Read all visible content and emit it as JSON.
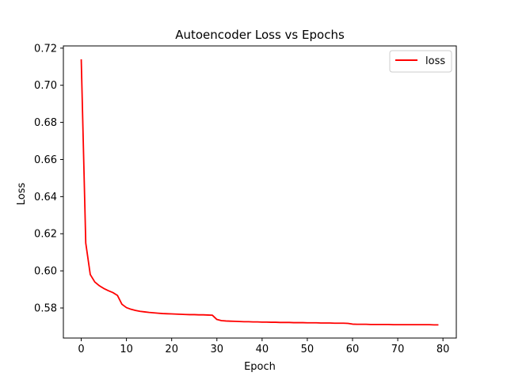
{
  "chart_data": {
    "type": "line",
    "title": "Autoencoder Loss vs Epochs",
    "xlabel": "Epoch",
    "ylabel": "Loss",
    "xlim": [
      -3.95,
      82.95
    ],
    "ylim": [
      0.5638,
      0.7212
    ],
    "xticks": [
      0,
      10,
      20,
      30,
      40,
      50,
      60,
      70,
      80
    ],
    "yticks": [
      0.58,
      0.6,
      0.62,
      0.64,
      0.66,
      0.68,
      0.7,
      0.72
    ],
    "ytick_labels": [
      "0.58",
      "0.60",
      "0.62",
      "0.64",
      "0.66",
      "0.68",
      "0.70",
      "0.72"
    ],
    "grid": false,
    "legend_position": "top-right",
    "series": [
      {
        "name": "loss",
        "color": "#ff0000",
        "x": [
          0,
          1,
          2,
          3,
          4,
          5,
          6,
          7,
          8,
          9,
          10,
          11,
          12,
          13,
          14,
          15,
          16,
          17,
          18,
          19,
          20,
          21,
          22,
          23,
          24,
          25,
          26,
          27,
          28,
          29,
          30,
          31,
          32,
          33,
          34,
          35,
          36,
          37,
          38,
          39,
          40,
          41,
          42,
          43,
          44,
          45,
          46,
          47,
          48,
          49,
          50,
          51,
          52,
          53,
          54,
          55,
          56,
          57,
          58,
          59,
          60,
          61,
          62,
          63,
          64,
          65,
          66,
          67,
          68,
          69,
          70,
          71,
          72,
          73,
          74,
          75,
          76,
          77,
          78,
          79
        ],
        "values": [
          0.714,
          0.615,
          0.598,
          0.594,
          0.592,
          0.5905,
          0.5893,
          0.5883,
          0.5868,
          0.582,
          0.5802,
          0.5793,
          0.5787,
          0.5782,
          0.5779,
          0.5776,
          0.5774,
          0.5772,
          0.577,
          0.5769,
          0.5768,
          0.5767,
          0.5766,
          0.5765,
          0.5764,
          0.5764,
          0.5763,
          0.5763,
          0.5762,
          0.5761,
          0.5738,
          0.5732,
          0.573,
          0.5729,
          0.5728,
          0.5727,
          0.5726,
          0.5726,
          0.5725,
          0.5725,
          0.5724,
          0.5724,
          0.5723,
          0.5723,
          0.5722,
          0.5722,
          0.5722,
          0.5721,
          0.5721,
          0.5721,
          0.572,
          0.572,
          0.572,
          0.5719,
          0.5719,
          0.5719,
          0.5718,
          0.5718,
          0.5718,
          0.5717,
          0.5713,
          0.5712,
          0.5712,
          0.5712,
          0.5711,
          0.5711,
          0.5711,
          0.5711,
          0.5711,
          0.571,
          0.571,
          0.571,
          0.571,
          0.571,
          0.571,
          0.571,
          0.571,
          0.571,
          0.5709,
          0.5709
        ]
      }
    ]
  }
}
